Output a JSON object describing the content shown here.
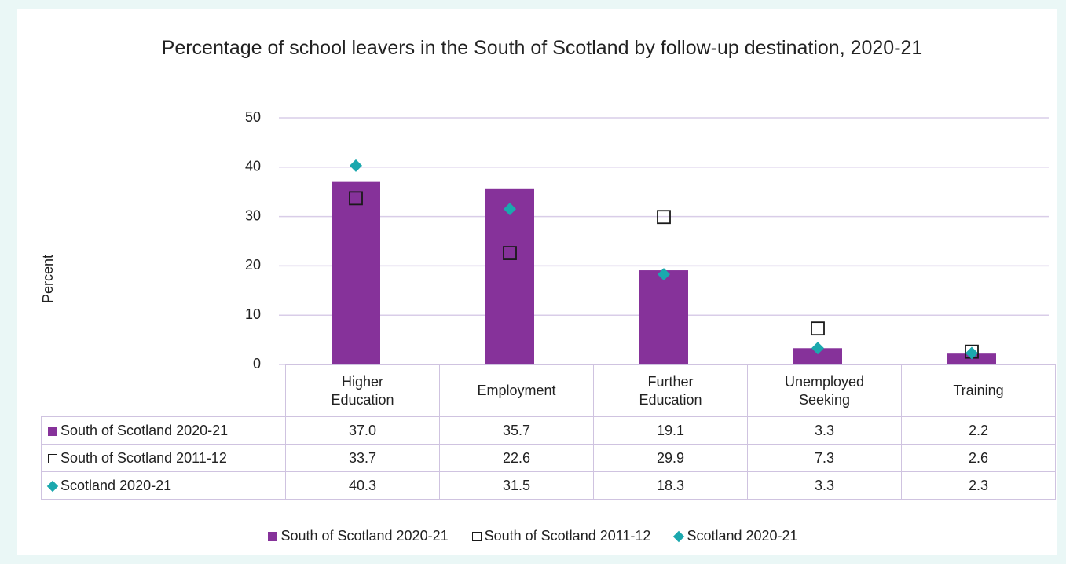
{
  "chart_data": {
    "type": "bar",
    "title": "Percentage of school leavers in the South of Scotland by follow-up destination, 2020-21",
    "ylabel": "Percent",
    "categories": [
      "Higher Education",
      "Employment",
      "Further Education",
      "Unemployed Seeking",
      "Training"
    ],
    "series": [
      {
        "name": "South of Scotland 2020-21",
        "marker": "bar",
        "color": "#86329a",
        "values": [
          37.0,
          35.7,
          19.1,
          3.3,
          2.2
        ],
        "value_labels": [
          "37.0",
          "35.7",
          "19.1",
          "3.3",
          "2.2"
        ]
      },
      {
        "name": "South of Scotland 2011-12",
        "marker": "square-open",
        "color": "#1a1a1a",
        "values": [
          33.7,
          22.6,
          29.9,
          7.3,
          2.6
        ],
        "value_labels": [
          "33.7",
          "22.6",
          "29.9",
          "7.3",
          "2.6"
        ]
      },
      {
        "name": "Scotland 2020-21",
        "marker": "diamond",
        "color": "#1ba8ae",
        "values": [
          40.3,
          31.5,
          18.3,
          3.3,
          2.3
        ],
        "value_labels": [
          "40.3",
          "31.5",
          "18.3",
          "3.3",
          "2.3"
        ]
      }
    ],
    "ylim": [
      0,
      50
    ],
    "yticks": [
      0,
      10,
      20,
      30,
      40,
      50
    ],
    "grid": true,
    "legend": "bottom"
  }
}
